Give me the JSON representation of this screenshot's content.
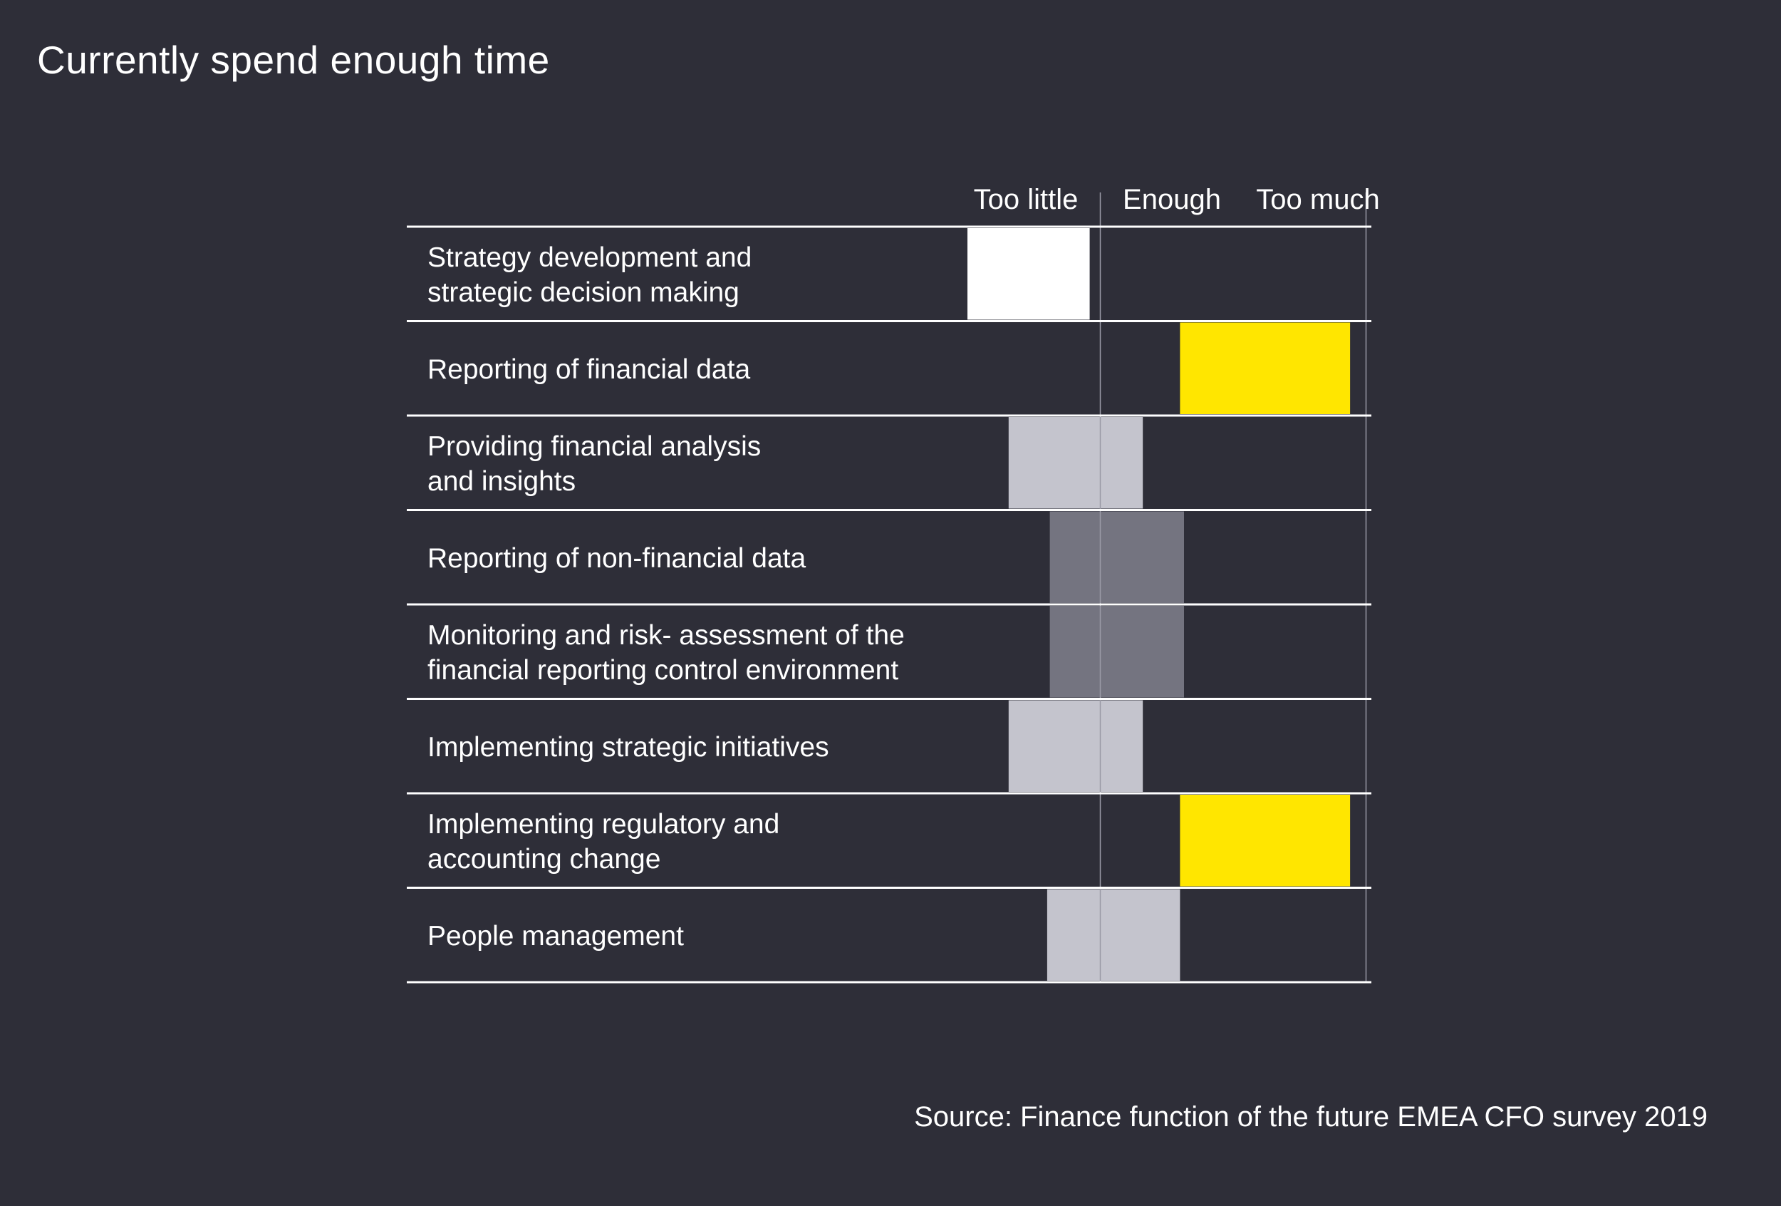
{
  "chart_data": {
    "type": "bar",
    "title": "Currently spend enough time",
    "columns": [
      "Too little",
      "Enough",
      "Too much"
    ],
    "rows": [
      {
        "label": [
          "Strategy development and",
          "strategic decision making"
        ],
        "start": 0.0,
        "end": 0.92,
        "color": "#ffffff"
      },
      {
        "label": [
          "Reporting of financial data"
        ],
        "start": 1.6,
        "end": 2.88,
        "color": "#ffe600"
      },
      {
        "label": [
          "Providing financial analysis",
          "and insights"
        ],
        "start": 0.31,
        "end": 1.32,
        "color": "#c4c4cd"
      },
      {
        "label": [
          "Reporting of non-financial data"
        ],
        "start": 0.62,
        "end": 1.63,
        "color": "#747480"
      },
      {
        "label": [
          "Monitoring and risk- assessment of the",
          "financial reporting control environment"
        ],
        "start": 0.62,
        "end": 1.63,
        "color": "#747480"
      },
      {
        "label": [
          "Implementing strategic initiatives"
        ],
        "start": 0.31,
        "end": 1.32,
        "color": "#c4c4cd"
      },
      {
        "label": [
          "Implementing regulatory and",
          "accounting change"
        ],
        "start": 1.6,
        "end": 2.88,
        "color": "#ffe600"
      },
      {
        "label": [
          "People management"
        ],
        "start": 0.6,
        "end": 1.6,
        "color": "#c4c4cd"
      }
    ]
  },
  "source": "Source: Finance function of the future EMEA CFO survey 2019"
}
